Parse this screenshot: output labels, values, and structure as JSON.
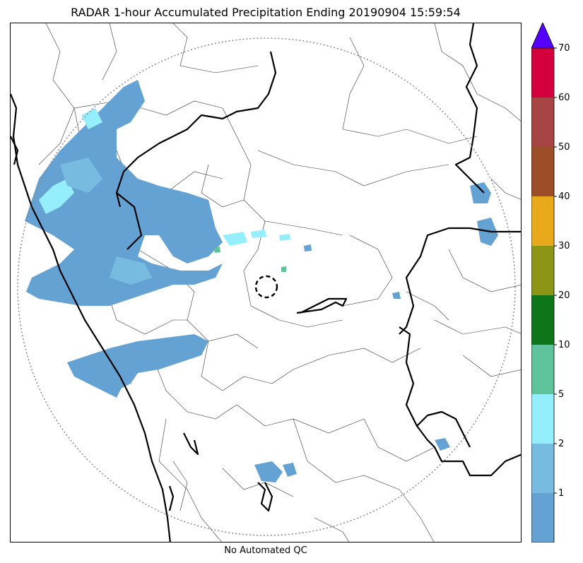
{
  "title": "RADAR 1-hour Accumulated Precipitation Ending 20190904 15:59:54",
  "footer": "No Automated QC",
  "colorbar": {
    "levels": [
      {
        "label": "",
        "color": "#64a2d4"
      },
      {
        "label": "1",
        "color": "#78bbe0"
      },
      {
        "label": "2",
        "color": "#95eefc"
      },
      {
        "label": "5",
        "color": "#5ec29a"
      },
      {
        "label": "10",
        "color": "#0e7618"
      },
      {
        "label": "20",
        "color": "#8d9516"
      },
      {
        "label": "30",
        "color": "#e8a91a"
      },
      {
        "label": "40",
        "color": "#9c4e29"
      },
      {
        "label": "50",
        "color": "#a64543"
      },
      {
        "label": "60",
        "color": "#d4003e"
      }
    ],
    "top_label": "70",
    "extend_color": "#5500ff"
  },
  "map": {
    "precip_base_color": "#64a2d4",
    "precip_light_color": "#95eefc",
    "range_ring_color": "#888888",
    "radar_site_marker": "dashed-circle"
  }
}
